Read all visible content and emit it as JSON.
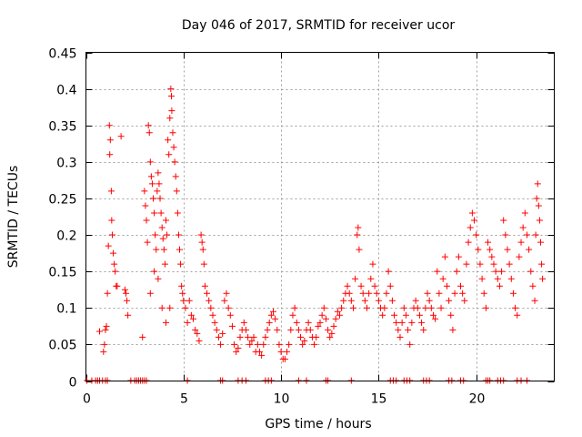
{
  "chart_data": {
    "type": "scatter",
    "title": "Day 046 of 2017, SRMTID for receiver ucor",
    "xlabel": "GPS time / hours",
    "ylabel": "SRMTID / TECUs",
    "xlim": [
      0,
      24
    ],
    "ylim": [
      0,
      0.45
    ],
    "xticks": [
      0,
      5,
      10,
      15,
      20
    ],
    "xtick_labels": [
      "0",
      "5",
      "10",
      "15",
      "20"
    ],
    "yticks": [
      0,
      0.05,
      0.1,
      0.15,
      0.2,
      0.25,
      0.3,
      0.35,
      0.4,
      0.45
    ],
    "ytick_labels": [
      "0",
      "0.05",
      "0.1",
      "0.15",
      "0.2",
      "0.25",
      "0.3",
      "0.35",
      "0.4",
      "0.45"
    ],
    "grid": true,
    "marker": "+",
    "color": "#ff0000",
    "series": [
      {
        "name": "SRMTID",
        "points": [
          [
            0.05,
            0
          ],
          [
            0.3,
            0
          ],
          [
            0.5,
            0
          ],
          [
            0.6,
            0
          ],
          [
            0.7,
            0
          ],
          [
            0.85,
            0
          ],
          [
            1.0,
            0
          ],
          [
            1.1,
            0
          ],
          [
            2.3,
            0
          ],
          [
            2.5,
            0
          ],
          [
            2.6,
            0
          ],
          [
            2.7,
            0
          ],
          [
            2.8,
            0
          ],
          [
            2.9,
            0
          ],
          [
            3.0,
            0
          ],
          [
            3.1,
            0
          ],
          [
            5.2,
            0
          ],
          [
            6.9,
            0
          ],
          [
            7.0,
            0
          ],
          [
            7.8,
            0
          ],
          [
            8.0,
            0
          ],
          [
            8.2,
            0
          ],
          [
            9.2,
            0
          ],
          [
            9.35,
            0
          ],
          [
            9.5,
            0
          ],
          [
            10.9,
            0
          ],
          [
            11.3,
            0
          ],
          [
            12.3,
            0
          ],
          [
            12.4,
            0
          ],
          [
            13.6,
            0
          ],
          [
            15.6,
            0
          ],
          [
            15.75,
            0
          ],
          [
            15.9,
            0
          ],
          [
            16.3,
            0
          ],
          [
            16.45,
            0
          ],
          [
            16.6,
            0
          ],
          [
            17.3,
            0
          ],
          [
            17.45,
            0
          ],
          [
            17.6,
            0
          ],
          [
            18.6,
            0
          ],
          [
            18.75,
            0
          ],
          [
            19.2,
            0
          ],
          [
            19.35,
            0
          ],
          [
            20.5,
            0
          ],
          [
            20.6,
            0
          ],
          [
            20.7,
            0
          ],
          [
            21.1,
            0
          ],
          [
            21.25,
            0
          ],
          [
            21.4,
            0
          ],
          [
            22.1,
            0
          ],
          [
            22.3,
            0
          ],
          [
            22.6,
            0
          ],
          [
            0.7,
            0.068
          ],
          [
            0.9,
            0.04
          ],
          [
            0.95,
            0.05
          ],
          [
            1.0,
            0.07
          ],
          [
            1.05,
            0.075
          ],
          [
            1.1,
            0.12
          ],
          [
            1.15,
            0.185
          ],
          [
            1.2,
            0.35
          ],
          [
            1.22,
            0.31
          ],
          [
            1.25,
            0.33
          ],
          [
            1.3,
            0.26
          ],
          [
            1.32,
            0.22
          ],
          [
            1.35,
            0.2
          ],
          [
            1.4,
            0.175
          ],
          [
            1.45,
            0.16
          ],
          [
            1.5,
            0.15
          ],
          [
            1.55,
            0.13
          ],
          [
            1.6,
            0.13
          ],
          [
            1.8,
            0.335
          ],
          [
            2.0,
            0.125
          ],
          [
            2.05,
            0.12
          ],
          [
            2.1,
            0.11
          ],
          [
            2.15,
            0.09
          ],
          [
            2.9,
            0.06
          ],
          [
            3.0,
            0.26
          ],
          [
            3.05,
            0.24
          ],
          [
            3.1,
            0.22
          ],
          [
            3.15,
            0.19
          ],
          [
            3.2,
            0.35
          ],
          [
            3.25,
            0.34
          ],
          [
            3.3,
            0.3
          ],
          [
            3.35,
            0.28
          ],
          [
            3.4,
            0.27
          ],
          [
            3.45,
            0.25
          ],
          [
            3.5,
            0.23
          ],
          [
            3.55,
            0.2
          ],
          [
            3.6,
            0.18
          ],
          [
            3.65,
            0.26
          ],
          [
            3.7,
            0.285
          ],
          [
            3.75,
            0.27
          ],
          [
            3.8,
            0.25
          ],
          [
            3.85,
            0.23
          ],
          [
            3.9,
            0.21
          ],
          [
            3.95,
            0.195
          ],
          [
            4.0,
            0.18
          ],
          [
            4.05,
            0.16
          ],
          [
            4.1,
            0.22
          ],
          [
            4.15,
            0.2
          ],
          [
            4.2,
            0.33
          ],
          [
            4.25,
            0.31
          ],
          [
            4.3,
            0.36
          ],
          [
            4.35,
            0.4
          ],
          [
            4.38,
            0.39
          ],
          [
            4.4,
            0.37
          ],
          [
            4.45,
            0.34
          ],
          [
            4.5,
            0.32
          ],
          [
            4.55,
            0.3
          ],
          [
            4.6,
            0.28
          ],
          [
            4.65,
            0.26
          ],
          [
            4.7,
            0.23
          ],
          [
            4.75,
            0.2
          ],
          [
            4.8,
            0.18
          ],
          [
            4.85,
            0.16
          ],
          [
            4.9,
            0.13
          ],
          [
            4.95,
            0.12
          ],
          [
            5.0,
            0.11
          ],
          [
            5.1,
            0.1
          ],
          [
            5.2,
            0.08
          ],
          [
            3.3,
            0.12
          ],
          [
            3.5,
            0.15
          ],
          [
            3.7,
            0.14
          ],
          [
            3.9,
            0.1
          ],
          [
            4.1,
            0.08
          ],
          [
            4.3,
            0.1
          ],
          [
            5.3,
            0.11
          ],
          [
            5.4,
            0.09
          ],
          [
            5.5,
            0.085
          ],
          [
            5.6,
            0.07
          ],
          [
            5.7,
            0.065
          ],
          [
            5.8,
            0.055
          ],
          [
            5.9,
            0.2
          ],
          [
            5.95,
            0.19
          ],
          [
            6.0,
            0.18
          ],
          [
            6.05,
            0.16
          ],
          [
            6.1,
            0.13
          ],
          [
            6.2,
            0.12
          ],
          [
            6.3,
            0.11
          ],
          [
            6.4,
            0.1
          ],
          [
            6.5,
            0.09
          ],
          [
            6.6,
            0.08
          ],
          [
            6.7,
            0.07
          ],
          [
            6.8,
            0.06
          ],
          [
            6.9,
            0.05
          ],
          [
            7.0,
            0.065
          ],
          [
            7.1,
            0.11
          ],
          [
            7.2,
            0.12
          ],
          [
            7.3,
            0.1
          ],
          [
            7.4,
            0.09
          ],
          [
            7.5,
            0.075
          ],
          [
            7.6,
            0.05
          ],
          [
            7.7,
            0.04
          ],
          [
            7.8,
            0.045
          ],
          [
            7.9,
            0.06
          ],
          [
            8.0,
            0.07
          ],
          [
            8.1,
            0.08
          ],
          [
            8.2,
            0.07
          ],
          [
            8.3,
            0.06
          ],
          [
            8.4,
            0.05
          ],
          [
            8.5,
            0.055
          ],
          [
            8.6,
            0.06
          ],
          [
            8.7,
            0.04
          ],
          [
            8.8,
            0.05
          ],
          [
            8.9,
            0.04
          ],
          [
            9.0,
            0.035
          ],
          [
            9.1,
            0.05
          ],
          [
            9.2,
            0.06
          ],
          [
            9.3,
            0.07
          ],
          [
            9.4,
            0.08
          ],
          [
            9.5,
            0.09
          ],
          [
            9.6,
            0.095
          ],
          [
            9.7,
            0.085
          ],
          [
            9.8,
            0.07
          ],
          [
            9.9,
            0.05
          ],
          [
            10.0,
            0.04
          ],
          [
            10.1,
            0.03
          ],
          [
            10.2,
            0.03
          ],
          [
            10.3,
            0.04
          ],
          [
            10.4,
            0.05
          ],
          [
            10.5,
            0.07
          ],
          [
            10.6,
            0.09
          ],
          [
            10.7,
            0.1
          ],
          [
            10.8,
            0.08
          ],
          [
            10.9,
            0.07
          ],
          [
            11.0,
            0.06
          ],
          [
            11.1,
            0.05
          ],
          [
            11.2,
            0.055
          ],
          [
            11.3,
            0.07
          ],
          [
            11.4,
            0.08
          ],
          [
            11.5,
            0.07
          ],
          [
            11.6,
            0.06
          ],
          [
            11.7,
            0.05
          ],
          [
            11.8,
            0.06
          ],
          [
            11.9,
            0.075
          ],
          [
            12.0,
            0.08
          ],
          [
            12.1,
            0.09
          ],
          [
            12.2,
            0.1
          ],
          [
            12.3,
            0.085
          ],
          [
            12.4,
            0.07
          ],
          [
            12.5,
            0.06
          ],
          [
            12.6,
            0.065
          ],
          [
            12.7,
            0.075
          ],
          [
            12.8,
            0.085
          ],
          [
            12.9,
            0.095
          ],
          [
            13.0,
            0.09
          ],
          [
            13.1,
            0.1
          ],
          [
            13.2,
            0.11
          ],
          [
            13.3,
            0.12
          ],
          [
            13.4,
            0.13
          ],
          [
            13.5,
            0.12
          ],
          [
            13.6,
            0.11
          ],
          [
            13.7,
            0.1
          ],
          [
            13.8,
            0.14
          ],
          [
            13.9,
            0.2
          ],
          [
            13.95,
            0.21
          ],
          [
            14.0,
            0.18
          ],
          [
            14.1,
            0.13
          ],
          [
            14.2,
            0.12
          ],
          [
            14.3,
            0.11
          ],
          [
            14.4,
            0.1
          ],
          [
            14.5,
            0.12
          ],
          [
            14.6,
            0.14
          ],
          [
            14.7,
            0.16
          ],
          [
            14.8,
            0.13
          ],
          [
            14.9,
            0.12
          ],
          [
            15.0,
            0.11
          ],
          [
            15.1,
            0.1
          ],
          [
            15.2,
            0.09
          ],
          [
            15.3,
            0.1
          ],
          [
            15.4,
            0.12
          ],
          [
            15.5,
            0.15
          ],
          [
            15.6,
            0.13
          ],
          [
            15.7,
            0.11
          ],
          [
            15.8,
            0.09
          ],
          [
            15.9,
            0.08
          ],
          [
            16.0,
            0.07
          ],
          [
            16.1,
            0.06
          ],
          [
            16.2,
            0.08
          ],
          [
            16.3,
            0.1
          ],
          [
            16.4,
            0.09
          ],
          [
            16.5,
            0.07
          ],
          [
            16.6,
            0.05
          ],
          [
            16.7,
            0.08
          ],
          [
            16.8,
            0.1
          ],
          [
            16.9,
            0.11
          ],
          [
            17.0,
            0.1
          ],
          [
            17.1,
            0.09
          ],
          [
            17.2,
            0.08
          ],
          [
            17.3,
            0.07
          ],
          [
            17.4,
            0.1
          ],
          [
            17.5,
            0.12
          ],
          [
            17.6,
            0.11
          ],
          [
            17.7,
            0.1
          ],
          [
            17.8,
            0.09
          ],
          [
            17.9,
            0.085
          ],
          [
            18.0,
            0.15
          ],
          [
            18.1,
            0.12
          ],
          [
            18.2,
            0.1
          ],
          [
            18.3,
            0.14
          ],
          [
            18.4,
            0.17
          ],
          [
            18.5,
            0.13
          ],
          [
            18.6,
            0.11
          ],
          [
            18.7,
            0.09
          ],
          [
            18.8,
            0.07
          ],
          [
            18.9,
            0.12
          ],
          [
            19.0,
            0.15
          ],
          [
            19.1,
            0.17
          ],
          [
            19.2,
            0.13
          ],
          [
            19.3,
            0.12
          ],
          [
            19.4,
            0.11
          ],
          [
            19.5,
            0.16
          ],
          [
            19.6,
            0.19
          ],
          [
            19.7,
            0.21
          ],
          [
            19.8,
            0.23
          ],
          [
            19.9,
            0.22
          ],
          [
            20.0,
            0.2
          ],
          [
            20.1,
            0.18
          ],
          [
            20.2,
            0.16
          ],
          [
            20.3,
            0.14
          ],
          [
            20.4,
            0.12
          ],
          [
            20.5,
            0.1
          ],
          [
            20.6,
            0.19
          ],
          [
            20.7,
            0.18
          ],
          [
            20.8,
            0.17
          ],
          [
            20.9,
            0.16
          ],
          [
            21.0,
            0.15
          ],
          [
            21.1,
            0.14
          ],
          [
            21.2,
            0.13
          ],
          [
            21.3,
            0.15
          ],
          [
            21.4,
            0.22
          ],
          [
            21.5,
            0.2
          ],
          [
            21.6,
            0.18
          ],
          [
            21.7,
            0.16
          ],
          [
            21.8,
            0.14
          ],
          [
            21.9,
            0.12
          ],
          [
            22.0,
            0.1
          ],
          [
            22.1,
            0.09
          ],
          [
            22.2,
            0.17
          ],
          [
            22.3,
            0.19
          ],
          [
            22.4,
            0.21
          ],
          [
            22.5,
            0.23
          ],
          [
            22.6,
            0.2
          ],
          [
            22.7,
            0.18
          ],
          [
            22.8,
            0.15
          ],
          [
            22.9,
            0.13
          ],
          [
            23.0,
            0.11
          ],
          [
            23.05,
            0.2
          ],
          [
            23.1,
            0.25
          ],
          [
            23.15,
            0.27
          ],
          [
            23.2,
            0.24
          ],
          [
            23.25,
            0.22
          ],
          [
            23.3,
            0.19
          ],
          [
            23.35,
            0.16
          ],
          [
            23.4,
            0.14
          ]
        ]
      }
    ]
  }
}
